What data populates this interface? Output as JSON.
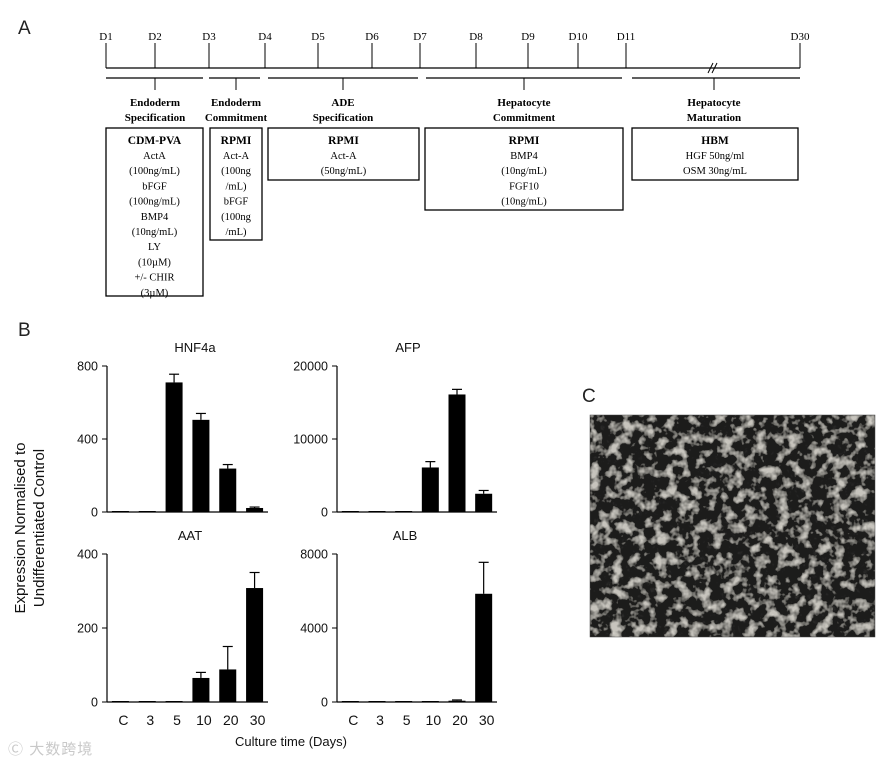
{
  "panels": {
    "a": "A",
    "b": "B",
    "c": "C"
  },
  "timeline": {
    "days": [
      {
        "label": "D1"
      },
      {
        "label": "D2"
      },
      {
        "label": "D3"
      },
      {
        "label": "D4"
      },
      {
        "label": "D5"
      },
      {
        "label": "D6"
      },
      {
        "label": "D7"
      },
      {
        "label": "D8"
      },
      {
        "label": "D9"
      },
      {
        "label": "D10"
      },
      {
        "label": "D11"
      },
      {
        "label": "D30"
      }
    ],
    "stages": [
      {
        "title": [
          "Endoderm",
          "Specification"
        ],
        "medium": "CDM-PVA",
        "components": [
          "ActA",
          "(100ng/mL)",
          "bFGF",
          "(100ng/mL)",
          "BMP4",
          "(10ng/mL)",
          "LY",
          "(10µM)",
          "+/- CHIR",
          "(3µM)"
        ]
      },
      {
        "title": [
          "Endoderm",
          "Commitment"
        ],
        "medium": "RPMI",
        "components": [
          "Act-A",
          "(100ng",
          "/mL)",
          "bFGF",
          "(100ng",
          "/mL)"
        ]
      },
      {
        "title": [
          "ADE",
          "Specification"
        ],
        "medium": "RPMI",
        "components": [
          "Act-A",
          "(50ng/mL)"
        ]
      },
      {
        "title": [
          "Hepatocyte",
          "Commitment"
        ],
        "medium": "RPMI",
        "components": [
          "BMP4",
          "(10ng/mL)",
          "FGF10",
          "(10ng/mL)"
        ]
      },
      {
        "title": [
          "Hepatocyte",
          "Maturation"
        ],
        "medium": "HBM",
        "components": [
          "HGF 50ng/ml",
          "OSM 30ng/mL"
        ]
      }
    ]
  },
  "chart_data": [
    {
      "type": "bar",
      "title": "HNF4a",
      "categories": [
        "C",
        "3",
        "5",
        "10",
        "20",
        "30"
      ],
      "values": [
        2,
        2,
        710,
        505,
        238,
        22
      ],
      "errors": [
        0,
        0,
        45,
        35,
        22,
        5
      ],
      "ylim": [
        0,
        800
      ],
      "yticks": [
        0,
        400,
        800
      ]
    },
    {
      "type": "bar",
      "title": "AFP",
      "categories": [
        "C",
        "3",
        "5",
        "10",
        "20",
        "30"
      ],
      "values": [
        60,
        60,
        90,
        6100,
        16100,
        2500
      ],
      "errors": [
        0,
        0,
        0,
        800,
        700,
        450
      ],
      "ylim": [
        0,
        20000
      ],
      "yticks": [
        0,
        10000,
        20000
      ]
    },
    {
      "type": "bar",
      "title": "AAT",
      "categories": [
        "C",
        "3",
        "5",
        "10",
        "20",
        "30"
      ],
      "values": [
        1,
        1,
        2,
        65,
        88,
        308
      ],
      "errors": [
        0,
        0,
        0,
        15,
        62,
        42
      ],
      "ylim": [
        0,
        400
      ],
      "yticks": [
        0,
        200,
        400
      ]
    },
    {
      "type": "bar",
      "title": "ALB",
      "categories": [
        "C",
        "3",
        "5",
        "10",
        "20",
        "30"
      ],
      "values": [
        5,
        10,
        15,
        20,
        70,
        5850
      ],
      "errors": [
        0,
        0,
        0,
        0,
        40,
        1700
      ],
      "ylim": [
        0,
        8000
      ],
      "yticks": [
        0,
        4000,
        8000
      ]
    }
  ],
  "axes": {
    "ylabel": [
      "Expression Normalised to",
      "Undifferentiated Control"
    ],
    "xlabel": "Culture time (Days)"
  },
  "watermark": "大数跨境"
}
